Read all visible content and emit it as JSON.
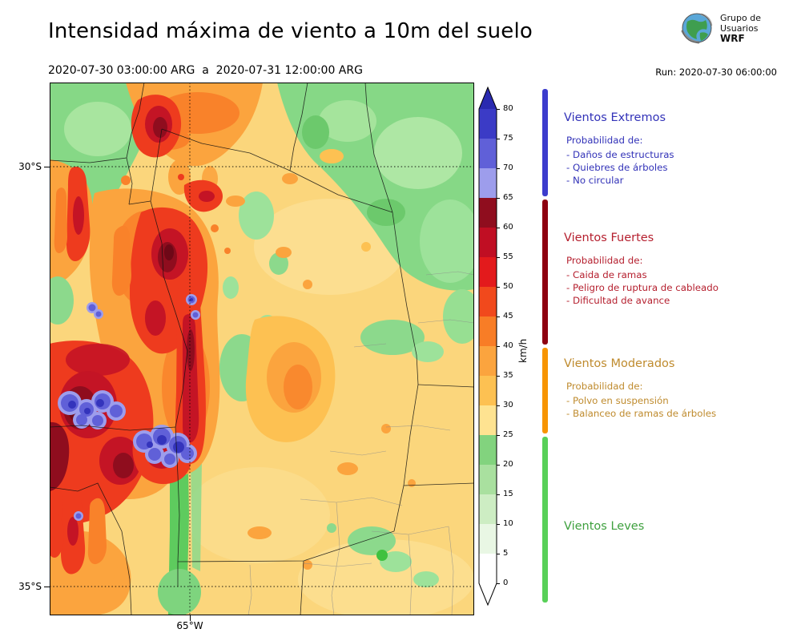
{
  "header": {
    "title": "Intensidad máxima de viento a 10m del suelo",
    "period": "2020-07-30 03:00:00 ARG  a  2020-07-31 12:00:00 ARG",
    "run_label": "Run: 2020-07-30 06:00:00",
    "logo": {
      "line1": "Grupo de",
      "line2": "Usuarios",
      "line3": "WRF"
    }
  },
  "map": {
    "y_ticks": [
      "30°S",
      "35°S"
    ],
    "x_ticks": [
      "65°W"
    ]
  },
  "colorbar": {
    "unit": "km/h",
    "ticks": [
      "0",
      "5",
      "10",
      "15",
      "20",
      "25",
      "30",
      "35",
      "40",
      "45",
      "50",
      "55",
      "60",
      "65",
      "70",
      "75",
      "80"
    ],
    "segments": [
      {
        "from": 0,
        "to": 5,
        "color": "#ffffff"
      },
      {
        "from": 5,
        "to": 10,
        "color": "#e9f7e4"
      },
      {
        "from": 10,
        "to": 15,
        "color": "#cdedc3"
      },
      {
        "from": 15,
        "to": 20,
        "color": "#a9e09f"
      },
      {
        "from": 20,
        "to": 25,
        "color": "#82d37e"
      },
      {
        "from": 25,
        "to": 30,
        "color": "#fee391"
      },
      {
        "from": 30,
        "to": 35,
        "color": "#fdc152"
      },
      {
        "from": 35,
        "to": 40,
        "color": "#fba43e"
      },
      {
        "from": 40,
        "to": 45,
        "color": "#f87d26"
      },
      {
        "from": 45,
        "to": 50,
        "color": "#f1491c"
      },
      {
        "from": 50,
        "to": 55,
        "color": "#e31a1c"
      },
      {
        "from": 55,
        "to": 60,
        "color": "#c00e23"
      },
      {
        "from": 60,
        "to": 65,
        "color": "#8f0d1e"
      },
      {
        "from": 65,
        "to": 70,
        "color": "#9d9dec"
      },
      {
        "from": 70,
        "to": 75,
        "color": "#6060d8"
      },
      {
        "from": 75,
        "to": 80,
        "color": "#3b3bc6"
      }
    ],
    "over_color": "#2a2ab0",
    "under_color": "#ffffff"
  },
  "legend": {
    "categories": [
      {
        "id": "extremos",
        "title": "Vientos Extremos",
        "color": "#3232b8",
        "bar_color": "#3c3ccd",
        "range": [
          65,
          86
        ],
        "prob_label": "Probabilidad de:",
        "items": [
          "- Daños de estructuras",
          "- Quiebres de árboles",
          "- No circular"
        ]
      },
      {
        "id": "fuertes",
        "title": "Vientos Fuertes",
        "color": "#b51f2e",
        "bar_color": "#8e0010",
        "range": [
          40,
          65
        ],
        "prob_label": "Probabilidad de:",
        "items": [
          "- Caida de ramas",
          "- Peligro de ruptura de cableado",
          "- Dificultad de avance"
        ]
      },
      {
        "id": "moderados",
        "title": "Vientos Moderados",
        "color": "#bf8b2e",
        "bar_color": "#f79400",
        "range": [
          25,
          40
        ],
        "prob_label": "Probabilidad de:",
        "items": [
          "- Polvo en suspensión",
          "- Balanceo de ramas de árboles"
        ]
      },
      {
        "id": "leves",
        "title": "Vientos Leves",
        "color": "#3ea03e",
        "bar_color": "#58d058",
        "range": [
          -3,
          25
        ],
        "prob_label": "",
        "items": []
      }
    ]
  }
}
